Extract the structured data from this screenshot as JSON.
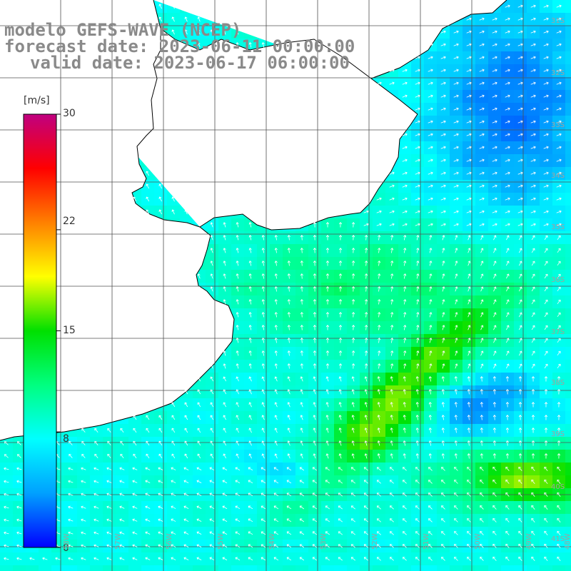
{
  "header": {
    "model_line": "modelo GEFS-WAVE (NCEP)",
    "forecast_line": "forecast date: 2023-06-11 00:00:00",
    "valid_line": "valid date: 2023-06-17 06:00:00"
  },
  "colorbar": {
    "unit": "[m/s]",
    "ticks": [
      "30",
      "22",
      "15",
      "8",
      "0"
    ],
    "tick_values": [
      30,
      22,
      15,
      8,
      0
    ],
    "colors": [
      "#0000ff",
      "#00a0ff",
      "#00ffff",
      "#00ff80",
      "#00e000",
      "#ffff00",
      "#ff8000",
      "#ff0000",
      "#c00080"
    ]
  },
  "map": {
    "lat_labels": [
      "31S",
      "32S",
      "33S",
      "34S",
      "35S",
      "36S",
      "37S",
      "38S",
      "39S",
      "40S",
      "41S"
    ],
    "lon_labels": [
      "58W",
      "57W",
      "56W",
      "55W",
      "54W",
      "53W",
      "52W",
      "51W",
      "50W",
      "49W",
      "48W"
    ],
    "land_color": "#ffffff",
    "grid_color": "#505050"
  }
}
